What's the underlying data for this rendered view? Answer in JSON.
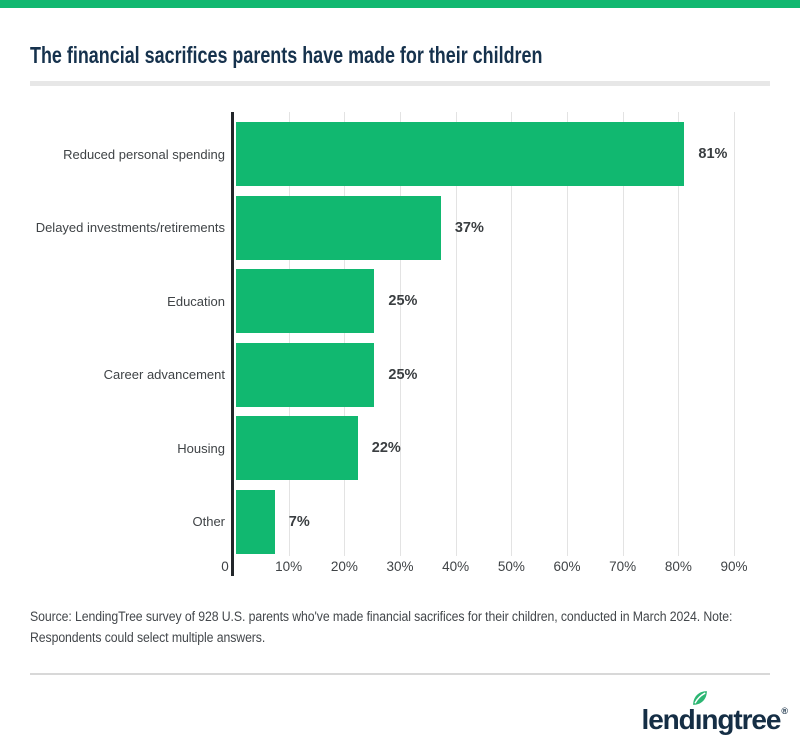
{
  "page": {
    "title": "The financial sacrifices parents have made for their children",
    "source_note": "Source: LendingTree survey of 928 U.S. parents who've made financial sacrifices for their children, conducted in March 2024. Note:\nRespondents could select multiple answers.",
    "brand": {
      "name_prefix": "lend",
      "dotless_i": "ı",
      "name_suffix": "ngtree",
      "registered_mark": "®"
    },
    "colors": {
      "accent_green": "#11b870",
      "title_navy": "#16324d",
      "logo_navy": "#152e45",
      "text_gray": "#3f4346",
      "grid_gray": "#e3e3e3",
      "axis_dark": "#22262a",
      "leaf_green": "#2cb673"
    }
  },
  "chart_data": {
    "type": "bar",
    "orientation": "horizontal",
    "title": "The financial sacrifices parents have made for their children",
    "categories": [
      "Reduced personal spending",
      "Delayed investments/retirements",
      "Education",
      "Career advancement",
      "Housing",
      "Other"
    ],
    "values": [
      81,
      37,
      25,
      25,
      22,
      7
    ],
    "value_labels": [
      "81%",
      "37%",
      "25%",
      "25%",
      "22%",
      "7%"
    ],
    "x_ticks": [
      "0",
      "10%",
      "20%",
      "30%",
      "40%",
      "50%",
      "60%",
      "70%",
      "80%",
      "90%"
    ],
    "x_tick_values": [
      0,
      10,
      20,
      30,
      40,
      50,
      60,
      70,
      80,
      90
    ],
    "xlim": [
      0,
      90
    ],
    "xlabel": "",
    "ylabel": "",
    "bar_color": "#11b870",
    "grid": true,
    "legend": false
  }
}
